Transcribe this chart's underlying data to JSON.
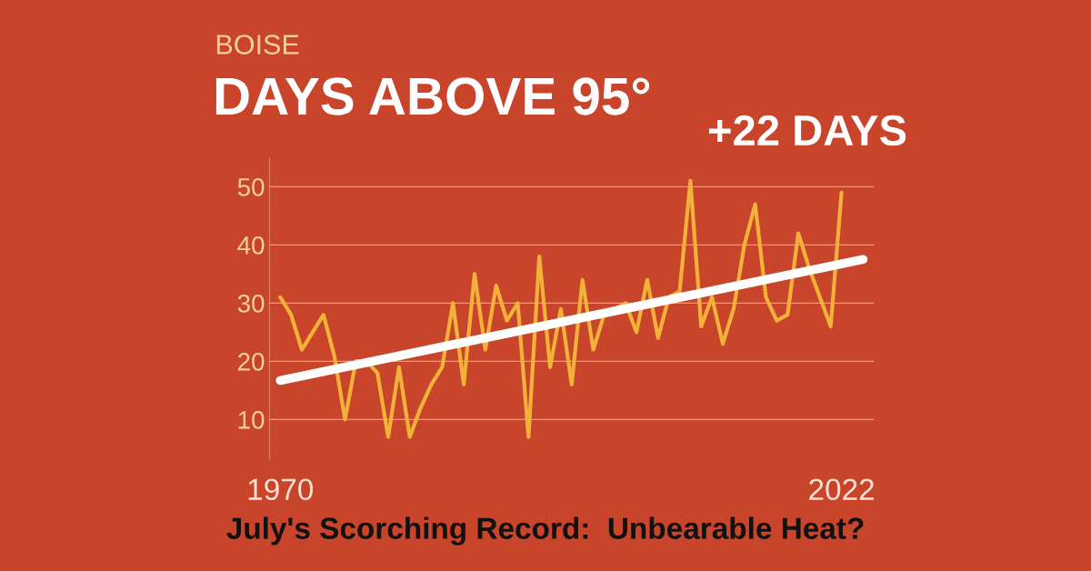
{
  "chart_data": {
    "type": "line",
    "subtitle": "BOISE",
    "title": "DAYS ABOVE 95°",
    "series": [
      {
        "color": "#f2b23a",
        "x": [
          1970,
          1971,
          1972,
          1973,
          1974,
          1975,
          1976,
          1977,
          1978,
          1979,
          1980,
          1981,
          1982,
          1983,
          1984,
          1985,
          1986,
          1987,
          1988,
          1989,
          1990,
          1991,
          1992,
          1993,
          1994,
          1995,
          1996,
          1997,
          1998,
          1999,
          2000,
          2001,
          2002,
          2003,
          2004,
          2005,
          2006,
          2007,
          2008,
          2009,
          2010,
          2011,
          2012,
          2013,
          2014,
          2015,
          2016,
          2017,
          2018,
          2019,
          2020,
          2021,
          2022
        ],
        "values": [
          31,
          28,
          22,
          25,
          28,
          21,
          10,
          20,
          20,
          18,
          7,
          19,
          7,
          12,
          16,
          19,
          30,
          16,
          35,
          22,
          33,
          27,
          30,
          7,
          38,
          19,
          29,
          16,
          34,
          22,
          28,
          29,
          30,
          25,
          34,
          24,
          31,
          32,
          51,
          26,
          31,
          23,
          29,
          40,
          47,
          31,
          27,
          28,
          42,
          36,
          31,
          26,
          49
        ]
      },
      {
        "type": "line",
        "color": "#ffffff",
        "x": [
          1970,
          2024
        ],
        "values": [
          16.7,
          37.5
        ]
      }
    ],
    "xlim": [
      1969,
      2025
    ],
    "xticks": [
      1970,
      2022
    ],
    "ylim": [
      3,
      55
    ],
    "yticks": [
      10,
      20,
      30,
      40,
      50
    ],
    "grid": "y",
    "legend": false,
    "annotations": [
      "+22 DAYS",
      "July's Scorching Record:  Unbearable Heat?"
    ]
  }
}
